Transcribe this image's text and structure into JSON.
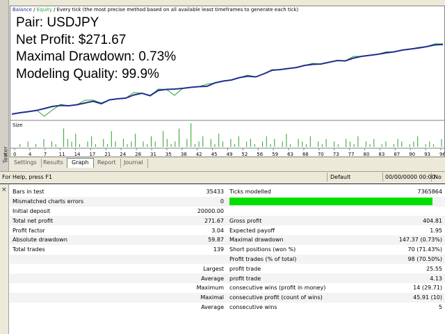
{
  "header": {
    "balance": "Balance",
    "slash": " / ",
    "equity": "Equity",
    "description": " / Every tick (the most precise method based on all available least timeframes to generate each tick)"
  },
  "overlay": {
    "pair": "Pair: USDJPY",
    "net_profit": "Net Profit: $271.67",
    "max_drawdown": "Maximal Drawdown: 0.73%",
    "modeling_quality": "Modeling Quality: 99.9%"
  },
  "size_label": "Size",
  "colors": {
    "balance": "#1f2f8f",
    "equity": "#2aa02a",
    "volume": "#2aa02a",
    "quality_bar": "#00e000"
  },
  "chart_data": {
    "type": "line",
    "title": "",
    "xlabel": "",
    "ylabel": "",
    "x_ticks": [
      "0",
      "4",
      "7",
      "11",
      "14",
      "17",
      "21",
      "24",
      "28",
      "31",
      "35",
      "38",
      "42",
      "45",
      "49",
      "52",
      "56",
      "59",
      "63",
      "66",
      "70",
      "73",
      "77",
      "80",
      "83",
      "87",
      "90",
      "93",
      "96"
    ],
    "series": [
      {
        "name": "Balance",
        "color": "#1f2f8f",
        "values": [
          0.0,
          2.0,
          3.5,
          5.2,
          8.0,
          11.0,
          12.5,
          12.0,
          13.5,
          16.0,
          18.5,
          15.0,
          20.5,
          22.0,
          23.0,
          27.5,
          30.0,
          26.5,
          34.0,
          35.5,
          36.0,
          37.0,
          38.5,
          39.5,
          40.0,
          45.0,
          47.5,
          49.0,
          52.5,
          54.5,
          53.5,
          58.0,
          63.0,
          64.0,
          65.5,
          67.0,
          70.0,
          71.5,
          72.0,
          74.5,
          77.0,
          76.5,
          80.5,
          83.0,
          84.5,
          86.0,
          88.0,
          89.5,
          92.0,
          93.5,
          95.0,
          97.0,
          99.5,
          100.0
        ]
      },
      {
        "name": "Equity",
        "color": "#2aa02a",
        "values": [
          0.0,
          2.0,
          3.0,
          6.0,
          -3.0,
          6.0,
          14.0,
          12.0,
          13.5,
          20.0,
          20.0,
          16.0,
          20.5,
          22.0,
          23.0,
          31.0,
          30.0,
          26.0,
          36.0,
          35.5,
          27.0,
          37.0,
          38.5,
          39.5,
          43.0,
          45.0,
          48.0,
          49.0,
          52.5,
          56.0,
          53.5,
          58.0,
          64.0,
          64.0,
          66.0,
          67.0,
          70.0,
          73.0,
          72.0,
          74.5,
          77.0,
          76.5,
          83.0,
          83.0,
          84.5,
          86.0,
          89.5,
          89.5,
          92.0,
          93.5,
          96.0,
          97.0,
          101.0,
          101.0
        ]
      }
    ],
    "volume": [
      0,
      1,
      0,
      2,
      0,
      1,
      0,
      3,
      0,
      2,
      1,
      0,
      7,
      3,
      2,
      5,
      1,
      0,
      2,
      4,
      1,
      0,
      3,
      1,
      6,
      2,
      0,
      3,
      1,
      2,
      5,
      0,
      2,
      1,
      4,
      2,
      0,
      6,
      3,
      1,
      2,
      7,
      0,
      3,
      9,
      1,
      2,
      4,
      0,
      3,
      1,
      5,
      2,
      0,
      3,
      1,
      4,
      0,
      2,
      3,
      1,
      0,
      2,
      4,
      1,
      3,
      0,
      2,
      5,
      1,
      0,
      3,
      2,
      1,
      4,
      0,
      2,
      1,
      3,
      0,
      2,
      1,
      0,
      3,
      2,
      1,
      4,
      0,
      2,
      1,
      3,
      0,
      1,
      2,
      0,
      1,
      3,
      2,
      0,
      1,
      2,
      4,
      0,
      1,
      2,
      1,
      0,
      3
    ]
  },
  "tabs": [
    "Settings",
    "Results",
    "Graph",
    "Report",
    "Journal"
  ],
  "status": {
    "help": "For Help, press F1",
    "profile": "Default",
    "datetime": "00/00/0000 00:00",
    "na": "No"
  },
  "side_label": "Tester",
  "report": {
    "bars_label": "Bars in test",
    "bars_value": "35433",
    "ticks_label": "Ticks modelled",
    "ticks_value": "7365864",
    "mismatch_label": "Mismatched charts errors",
    "mismatch_value": "0",
    "deposit_label": "Initial deposit",
    "deposit_value": "20000.00",
    "net_label": "Total net profit",
    "net_value": "271.67",
    "gross_label": "Gross profit",
    "gross_value": "404.81",
    "pf_label": "Profit factor",
    "pf_value": "3.04",
    "ep_label": "Expected payoff",
    "ep_value": "1.95",
    "abs_dd_label": "Absolute drawdown",
    "abs_dd_value": "59.87",
    "max_dd_label": "Maximal drawdown",
    "max_dd_value": "147.37 (0.73%)",
    "trades_label": "Total trades",
    "trades_value": "139",
    "short_label": "Short positions (won %)",
    "short_value": "70 (71.43%)",
    "pt_label": "Profit trades (% of total)",
    "pt_value": "98 (70.50%)",
    "largest_label": "Largest",
    "largest_desc": "profit trade",
    "largest_value": "25.55",
    "average_label": "Average",
    "average_desc": "profit trade",
    "average_value": "4.13",
    "maximum_label": "Maximum",
    "maximum_desc": "consecutive wins (profit in money)",
    "maximum_value": "14 (29.71)",
    "maximal_label": "Maximal",
    "maximal_desc": "consecutive profit (count of wins)",
    "maximal_value": "45.91 (10)",
    "avg2_label": "Average",
    "avg2_desc": "consecutive wins",
    "avg2_value": "5"
  }
}
